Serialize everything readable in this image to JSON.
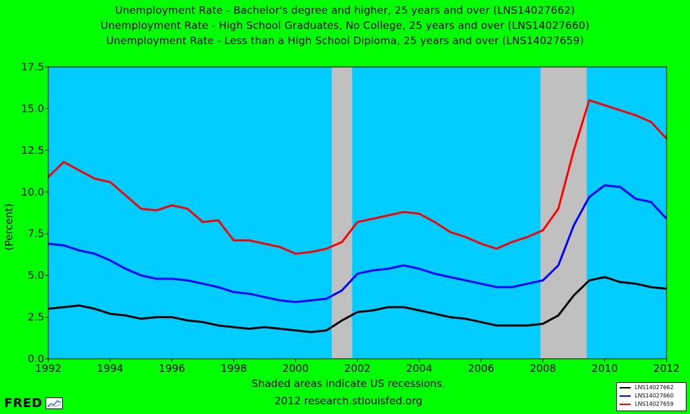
{
  "chart_data": {
    "type": "line",
    "titles": [
      "Unemployment Rate - Bachelor's degree and higher, 25 years and over (LNS14027662)",
      "Unemployment Rate - High School Graduates, No College, 25 years and over (LNS14027660)",
      "Unemployment Rate - Less than a High School Diploma, 25 years and over (LNS14027659)"
    ],
    "ylabel": "(Percent)",
    "xlim": [
      1992,
      2012
    ],
    "ylim": [
      0,
      17.5
    ],
    "x_ticks": [
      1992,
      1994,
      1996,
      1998,
      2000,
      2002,
      2004,
      2006,
      2008,
      2010,
      2012
    ],
    "x_tick_labels": [
      "1992",
      "1994",
      "1996",
      "1998",
      "2000",
      "2002",
      "2004",
      "2006",
      "2008",
      "2010",
      "2012"
    ],
    "y_ticks": [
      0,
      2.5,
      5,
      7.5,
      10,
      12.5,
      15,
      17.5
    ],
    "y_tick_labels": [
      "0.0",
      "2.5",
      "5.0",
      "7.5",
      "10.0",
      "12.5",
      "15.0",
      "17.5"
    ],
    "grid": false,
    "recessions": [
      [
        2001.17,
        2001.83
      ],
      [
        2007.92,
        2009.42
      ]
    ],
    "note": "Shaded areas indicate US recessions.",
    "source": "2012 research.stlouisfed.org",
    "series": [
      {
        "name": "LNS14027662",
        "color": "#000000",
        "points": [
          [
            1992.0,
            3.0
          ],
          [
            1992.5,
            3.1
          ],
          [
            1993.0,
            3.2
          ],
          [
            1993.5,
            3.0
          ],
          [
            1994.0,
            2.7
          ],
          [
            1994.5,
            2.6
          ],
          [
            1995.0,
            2.4
          ],
          [
            1995.5,
            2.5
          ],
          [
            1996.0,
            2.5
          ],
          [
            1996.5,
            2.3
          ],
          [
            1997.0,
            2.2
          ],
          [
            1997.5,
            2.0
          ],
          [
            1998.0,
            1.9
          ],
          [
            1998.5,
            1.8
          ],
          [
            1999.0,
            1.9
          ],
          [
            1999.5,
            1.8
          ],
          [
            2000.0,
            1.7
          ],
          [
            2000.5,
            1.6
          ],
          [
            2001.0,
            1.7
          ],
          [
            2001.5,
            2.3
          ],
          [
            2002.0,
            2.8
          ],
          [
            2002.5,
            2.9
          ],
          [
            2003.0,
            3.1
          ],
          [
            2003.5,
            3.1
          ],
          [
            2004.0,
            2.9
          ],
          [
            2004.5,
            2.7
          ],
          [
            2005.0,
            2.5
          ],
          [
            2005.5,
            2.4
          ],
          [
            2006.0,
            2.2
          ],
          [
            2006.5,
            2.0
          ],
          [
            2007.0,
            2.0
          ],
          [
            2007.5,
            2.0
          ],
          [
            2008.0,
            2.1
          ],
          [
            2008.5,
            2.6
          ],
          [
            2009.0,
            3.8
          ],
          [
            2009.5,
            4.7
          ],
          [
            2010.0,
            4.9
          ],
          [
            2010.5,
            4.6
          ],
          [
            2011.0,
            4.5
          ],
          [
            2011.5,
            4.3
          ],
          [
            2012.0,
            4.2
          ]
        ]
      },
      {
        "name": "LNS14027660",
        "color": "#0000ff",
        "points": [
          [
            1992.0,
            6.9
          ],
          [
            1992.5,
            6.8
          ],
          [
            1993.0,
            6.5
          ],
          [
            1993.5,
            6.3
          ],
          [
            1994.0,
            5.9
          ],
          [
            1994.5,
            5.4
          ],
          [
            1995.0,
            5.0
          ],
          [
            1995.5,
            4.8
          ],
          [
            1996.0,
            4.8
          ],
          [
            1996.5,
            4.7
          ],
          [
            1997.0,
            4.5
          ],
          [
            1997.5,
            4.3
          ],
          [
            1998.0,
            4.0
          ],
          [
            1998.5,
            3.9
          ],
          [
            1999.0,
            3.7
          ],
          [
            1999.5,
            3.5
          ],
          [
            2000.0,
            3.4
          ],
          [
            2000.5,
            3.5
          ],
          [
            2001.0,
            3.6
          ],
          [
            2001.5,
            4.1
          ],
          [
            2002.0,
            5.1
          ],
          [
            2002.5,
            5.3
          ],
          [
            2003.0,
            5.4
          ],
          [
            2003.5,
            5.6
          ],
          [
            2004.0,
            5.4
          ],
          [
            2004.5,
            5.1
          ],
          [
            2005.0,
            4.9
          ],
          [
            2005.5,
            4.7
          ],
          [
            2006.0,
            4.5
          ],
          [
            2006.5,
            4.3
          ],
          [
            2007.0,
            4.3
          ],
          [
            2007.5,
            4.5
          ],
          [
            2008.0,
            4.7
          ],
          [
            2008.5,
            5.6
          ],
          [
            2009.0,
            8.0
          ],
          [
            2009.5,
            9.7
          ],
          [
            2010.0,
            10.4
          ],
          [
            2010.5,
            10.3
          ],
          [
            2011.0,
            9.6
          ],
          [
            2011.5,
            9.4
          ],
          [
            2012.0,
            8.4
          ]
        ]
      },
      {
        "name": "LNS14027659",
        "color": "#ff0000",
        "points": [
          [
            1992.0,
            10.9
          ],
          [
            1992.5,
            11.8
          ],
          [
            1993.0,
            11.3
          ],
          [
            1993.5,
            10.8
          ],
          [
            1994.0,
            10.6
          ],
          [
            1994.5,
            9.8
          ],
          [
            1995.0,
            9.0
          ],
          [
            1995.5,
            8.9
          ],
          [
            1996.0,
            9.2
          ],
          [
            1996.5,
            9.0
          ],
          [
            1997.0,
            8.2
          ],
          [
            1997.5,
            8.3
          ],
          [
            1998.0,
            7.1
          ],
          [
            1998.5,
            7.1
          ],
          [
            1999.0,
            6.9
          ],
          [
            1999.5,
            6.7
          ],
          [
            2000.0,
            6.3
          ],
          [
            2000.5,
            6.4
          ],
          [
            2001.0,
            6.6
          ],
          [
            2001.5,
            7.0
          ],
          [
            2002.0,
            8.2
          ],
          [
            2002.5,
            8.4
          ],
          [
            2003.0,
            8.6
          ],
          [
            2003.5,
            8.8
          ],
          [
            2004.0,
            8.7
          ],
          [
            2004.5,
            8.2
          ],
          [
            2005.0,
            7.6
          ],
          [
            2005.5,
            7.3
          ],
          [
            2006.0,
            6.9
          ],
          [
            2006.5,
            6.6
          ],
          [
            2007.0,
            7.0
          ],
          [
            2007.5,
            7.3
          ],
          [
            2008.0,
            7.7
          ],
          [
            2008.5,
            9.0
          ],
          [
            2009.0,
            12.5
          ],
          [
            2009.5,
            15.5
          ],
          [
            2010.0,
            15.2
          ],
          [
            2010.5,
            14.9
          ],
          [
            2011.0,
            14.6
          ],
          [
            2011.5,
            14.2
          ],
          [
            2012.0,
            13.2
          ]
        ]
      }
    ]
  },
  "branding": {
    "logo_text": "FRED"
  }
}
